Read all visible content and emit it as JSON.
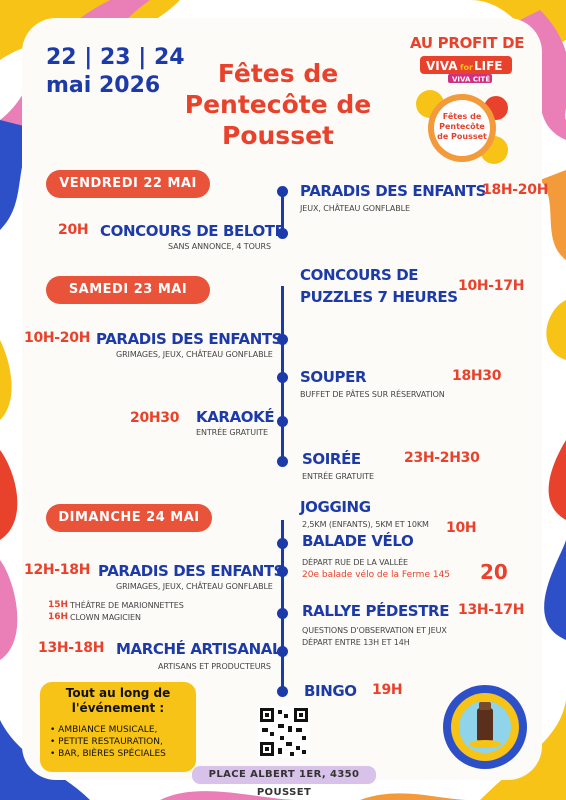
{
  "header": {
    "dates_line1": "22 | 23 | 24",
    "dates_line2": "mai 2026",
    "title": "Fêtes de Pentecôte de Pousset",
    "sponsor_label": "AU PROFIT DE",
    "sponsor_brand_a": "VIVA",
    "sponsor_brand_b": "for",
    "sponsor_brand_c": "LIFE",
    "sponsor_sub": "VIVA CITÉ",
    "sponsor_badge": "Fêtes de Pentecôte de Pousset"
  },
  "days": [
    {
      "label": "VENDREDI 22 MAI",
      "events": [
        {
          "name": "PARADIS DES ENFANTS",
          "time": "18H-20H",
          "sub": "JEUX, CHÂTEAU GONFLABLE"
        },
        {
          "name": "CONCOURS DE BELOTE",
          "time": "20H",
          "sub": "SANS ANNONCE, 4 TOURS"
        }
      ]
    },
    {
      "label": "SAMEDI 23 MAI",
      "events": [
        {
          "name_line1": "CONCOURS DE",
          "name_line2": "PUZZLES 7 HEURES",
          "time": "10H-17H"
        },
        {
          "name": "PARADIS DES ENFANTS",
          "time": "10H-20H",
          "sub": "GRIMAGES, JEUX, CHÂTEAU GONFLABLE"
        },
        {
          "name": "SOUPER",
          "time": "18H30",
          "sub": "BUFFET DE PÂTES  SUR RÉSERVATION"
        },
        {
          "name": "KARAOKÉ",
          "time": "20H30",
          "sub": "ENTRÉE GRATUITE"
        },
        {
          "name": "SOIRÉE",
          "time": "23H-2H30",
          "sub": "ENTRÉE GRATUITE"
        }
      ]
    },
    {
      "label": "DIMANCHE 24 MAI",
      "events": [
        {
          "name": "JOGGING",
          "sub": "2,5KM (ENFANTS), 5KM ET 10KM",
          "time": "10H"
        },
        {
          "name": "BALADE VÉLO",
          "sub": "DÉPART RUE DE LA VALLÉE",
          "extra": "20e balade vélo de la Ferme 145",
          "badge": "20"
        },
        {
          "name": "PARADIS DES ENFANTS",
          "time": "12H-18H",
          "sub": "GRIMAGES, JEUX, CHÂTEAU GONFLABLE",
          "detail1_time": "15H",
          "detail1": "THÉÂTRE DE MARIONNETTES",
          "detail2_time": "16H",
          "detail2": "CLOWN MAGICIEN"
        },
        {
          "name": "RALLYE PÉDESTRE",
          "time": "13H-17H",
          "sub1": "QUESTIONS D'OBSERVATION ET JEUX",
          "sub2": "DÉPART ENTRE 13H ET 14H"
        },
        {
          "name": "MARCHÉ ARTISANAL",
          "time": "13H-18H",
          "sub": "ARTISANS ET PRODUCTEURS"
        },
        {
          "name": "BINGO",
          "time": "19H"
        }
      ]
    }
  ],
  "all_along": {
    "title": "Tout au long de l'événement :",
    "items": [
      "AMBIANCE MUSICALE,",
      "PETITE RESTAURATION,",
      "BAR, BIÈRES SPÉCIALES"
    ]
  },
  "address": "PLACE ALBERT 1ER, 4350 POUSSET",
  "colors": {
    "blue": "#1c3aa8",
    "red": "#e8422c",
    "yellow": "#f7c316",
    "pink": "#e97fb6",
    "purple": "#d9c2ea"
  },
  "icons": [
    "qr-code-icon",
    "seal-logo-icon",
    "viva-for-life-logo"
  ]
}
